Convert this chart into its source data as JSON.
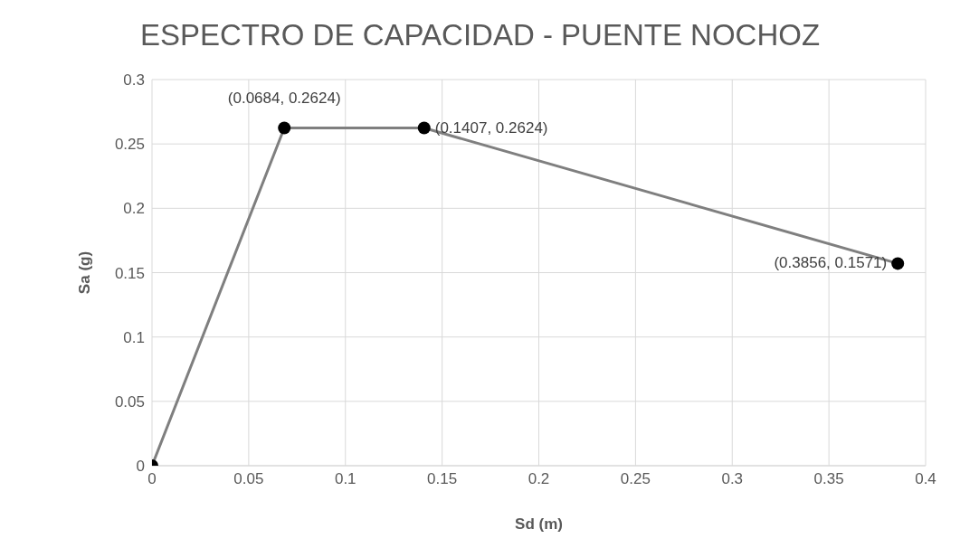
{
  "chart_data": {
    "type": "line",
    "title": "ESPECTRO DE CAPACIDAD - PUENTE NOCHOZ",
    "xlabel": "Sd  (m)",
    "ylabel": "Sa (g)",
    "x": [
      0,
      0.0684,
      0.1407,
      0.3856
    ],
    "series": [
      {
        "color": "#7f7f7f",
        "values": [
          0,
          0.2624,
          0.2624,
          0.1571
        ],
        "value_labels": [
          null,
          "(0.0684, 0.2624)",
          "(0.1407, 0.2624)",
          "(0.3856, 0.1571)"
        ]
      }
    ],
    "xlim": [
      0,
      0.4
    ],
    "xticks": [
      0,
      0.05,
      0.1,
      0.15,
      0.2,
      0.25,
      0.3,
      0.35,
      0.4
    ],
    "ylim": [
      0,
      0.3
    ],
    "yticks": [
      0,
      0.05,
      0.1,
      0.15,
      0.2,
      0.25,
      0.3
    ],
    "grid": true,
    "marker": "circle",
    "line_style": "solid",
    "legend": false
  }
}
